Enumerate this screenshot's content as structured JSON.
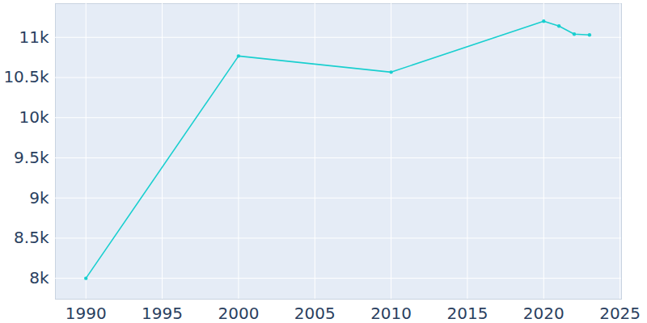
{
  "chart_data": {
    "type": "line",
    "x": [
      1990,
      2000,
      2010,
      2020,
      2021,
      2022,
      2023
    ],
    "values": [
      8000,
      10768,
      10567,
      11201,
      11141,
      11040,
      11030
    ],
    "color": "#19cfcf",
    "marker": "circle",
    "xlim": [
      1988,
      2025.1
    ],
    "xticks": [
      1990,
      1995,
      2000,
      2005,
      2010,
      2015,
      2020,
      2025
    ],
    "ylim": [
      7740,
      11420
    ],
    "yticks": [
      {
        "value": 8000,
        "label": "8k"
      },
      {
        "value": 8500,
        "label": "8.5k"
      },
      {
        "value": 9000,
        "label": "9k"
      },
      {
        "value": 9500,
        "label": "9.5k"
      },
      {
        "value": 10000,
        "label": "10k"
      },
      {
        "value": 10500,
        "label": "10.5k"
      },
      {
        "value": 11000,
        "label": "11k"
      }
    ],
    "grid": true
  }
}
